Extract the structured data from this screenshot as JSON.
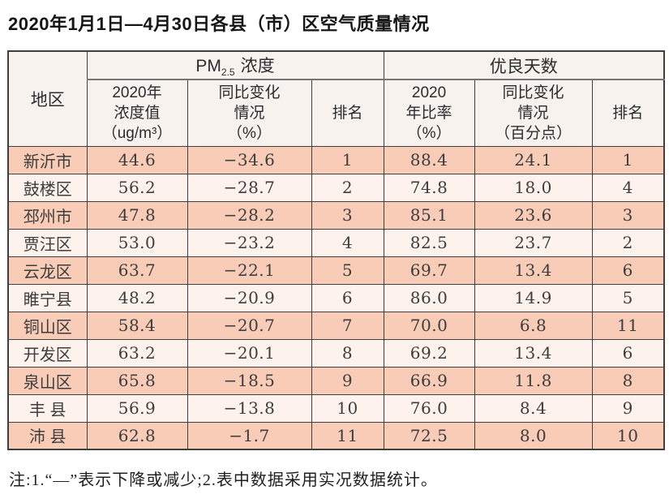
{
  "title": "2020年1月1日—4月30日各县（市）区空气质量情况",
  "table": {
    "region_header": "地区",
    "pm_group": {
      "prefix": "PM",
      "sub": "2.5",
      "label": "浓度"
    },
    "good_group": "优良天数",
    "columns": {
      "pm_value": [
        "2020年",
        "浓度值",
        "（ug/m³）"
      ],
      "pm_change": [
        "同比变化",
        "情况",
        "（%）"
      ],
      "pm_rank": "排名",
      "good_rate": [
        "2020",
        "年比率",
        "（%）"
      ],
      "good_change": [
        "同比变化",
        "情况",
        "（百分点）"
      ],
      "good_rank": "排名"
    },
    "rows": [
      {
        "region": "新沂市",
        "pm_value": "44.6",
        "pm_change": "−34.6",
        "pm_rank": "1",
        "good_rate": "88.4",
        "good_change": "24.1",
        "good_rank": "1"
      },
      {
        "region": "鼓楼区",
        "pm_value": "56.2",
        "pm_change": "−28.7",
        "pm_rank": "2",
        "good_rate": "74.8",
        "good_change": "18.0",
        "good_rank": "4"
      },
      {
        "region": "邳州市",
        "pm_value": "47.8",
        "pm_change": "−28.2",
        "pm_rank": "3",
        "good_rate": "85.1",
        "good_change": "23.6",
        "good_rank": "3"
      },
      {
        "region": "贾汪区",
        "pm_value": "53.0",
        "pm_change": "−23.2",
        "pm_rank": "4",
        "good_rate": "82.5",
        "good_change": "23.7",
        "good_rank": "2"
      },
      {
        "region": "云龙区",
        "pm_value": "63.7",
        "pm_change": "−22.1",
        "pm_rank": "5",
        "good_rate": "69.7",
        "good_change": "13.4",
        "good_rank": "6"
      },
      {
        "region": "睢宁县",
        "pm_value": "48.2",
        "pm_change": "−20.9",
        "pm_rank": "6",
        "good_rate": "86.0",
        "good_change": "14.9",
        "good_rank": "5"
      },
      {
        "region": "铜山区",
        "pm_value": "58.4",
        "pm_change": "−20.7",
        "pm_rank": "7",
        "good_rate": "70.0",
        "good_change": "6.8",
        "good_rank": "11"
      },
      {
        "region": "开发区",
        "pm_value": "63.2",
        "pm_change": "−20.1",
        "pm_rank": "8",
        "good_rate": "69.2",
        "good_change": "13.4",
        "good_rank": "6"
      },
      {
        "region": "泉山区",
        "pm_value": "65.8",
        "pm_change": "−18.5",
        "pm_rank": "9",
        "good_rate": "66.9",
        "good_change": "11.8",
        "good_rank": "8"
      },
      {
        "region": "丰 县",
        "pm_value": "56.9",
        "pm_change": "−13.8",
        "pm_rank": "10",
        "good_rate": "76.0",
        "good_change": "8.4",
        "good_rank": "9"
      },
      {
        "region": "沛 县",
        "pm_value": "62.8",
        "pm_change": "−1.7",
        "pm_rank": "11",
        "good_rate": "72.5",
        "good_change": "8.0",
        "good_rank": "10"
      }
    ]
  },
  "footnote": "注:1.“—”表示下降或减少;2.表中数据采用实况数据统计。",
  "colors": {
    "row_salmon": "#f8ccb6",
    "row_light": "#fdf3ec",
    "header_bg": "#f7f2ee",
    "region_header_bg": "#fbe8df",
    "border": "#3f3f3f",
    "group_divider": "#757575"
  }
}
